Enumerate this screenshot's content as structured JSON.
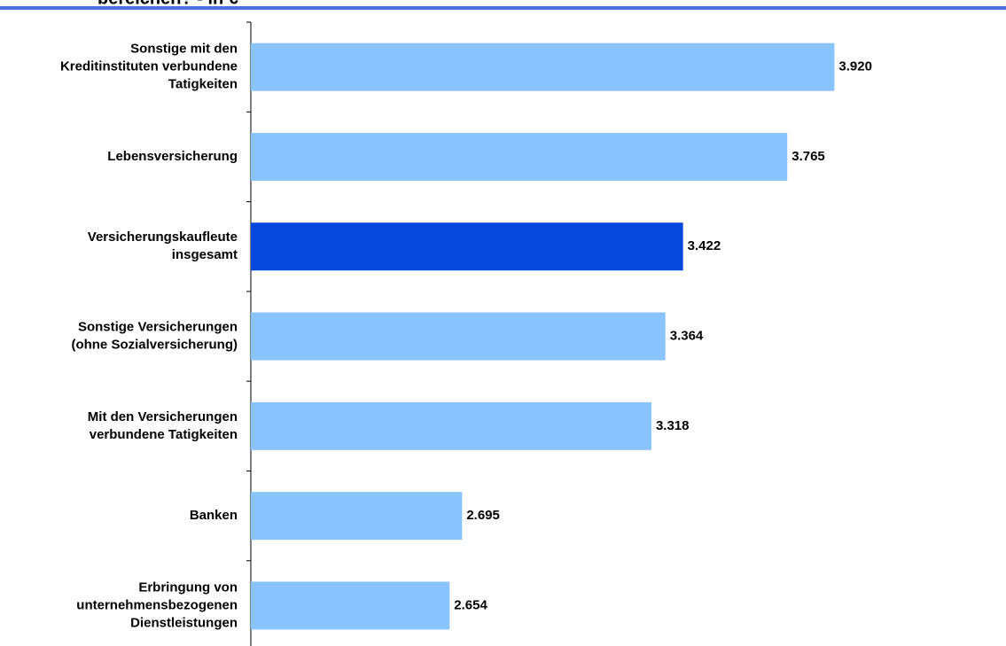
{
  "chart_data": {
    "type": "hbar",
    "title": "bereichen? - in €",
    "categories": [
      [
        "Sonstige mit den",
        "Kreditinstituten verbundene",
        "Tatigkeiten"
      ],
      [
        "Lebensversicherung"
      ],
      [
        "Versicherungskaufleute",
        "insgesamt"
      ],
      [
        "Sonstige Versicherungen",
        "(ohne Sozialversicherung)"
      ],
      [
        "Mit den Versicherungen",
        "verbundene Tatigkeiten"
      ],
      [
        "Banken"
      ],
      [
        "Erbringung von",
        "unternehmensbezogenen",
        "Dienstleistungen"
      ]
    ],
    "values": [
      3920,
      3765,
      3422,
      3364,
      3318,
      2695,
      2654
    ],
    "value_labels": [
      "3.920",
      "3.765",
      "3.422",
      "3.364",
      "3.318",
      "2.695",
      "2.654"
    ],
    "colors": [
      "#8ac4ff",
      "#8ac4ff",
      "#0448dd",
      "#8ac4ff",
      "#8ac4ff",
      "#8ac4ff",
      "#8ac4ff"
    ],
    "xlim": [
      2000,
      4400
    ]
  }
}
